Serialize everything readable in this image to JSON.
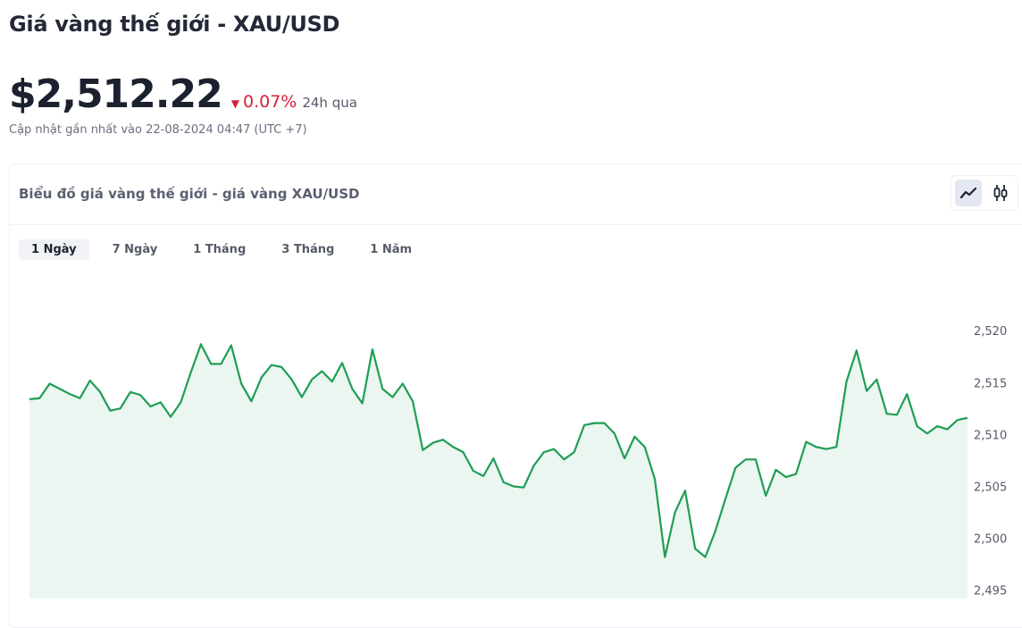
{
  "header": {
    "title": "Giá vàng thế giới - XAU/USD",
    "price": "$2,512.22",
    "change": "0.07%",
    "change_direction": "down",
    "change_color": "#d9203a",
    "period": "24h qua",
    "updated": "Cập nhật gần nhất vào 22-08-2024 04:47 (UTC +7)"
  },
  "card": {
    "title": "Biểu đồ giá vàng thế giới - giá vàng XAU/USD",
    "chart_types": [
      {
        "icon": "line-chart-icon",
        "active": true
      },
      {
        "icon": "candlestick-icon",
        "active": false
      }
    ],
    "tabs": [
      {
        "label": "1 Ngày",
        "active": true
      },
      {
        "label": "7 Ngày",
        "active": false
      },
      {
        "label": "1 Tháng",
        "active": false
      },
      {
        "label": "3 Tháng",
        "active": false
      },
      {
        "label": "1 Năm",
        "active": false
      }
    ]
  },
  "chart_data": {
    "type": "area",
    "title": "",
    "xlabel": "",
    "ylabel": "",
    "ylim": [
      2494.2,
      2522.6
    ],
    "y_ticks": [
      2495,
      2500,
      2505,
      2510,
      2515,
      2520
    ],
    "y_tick_labels": [
      "2,495",
      "2,500",
      "2,505",
      "2,510",
      "2,515",
      "2,520"
    ],
    "y_axis_position": "right",
    "grid": false,
    "line_color": "#1f9d55",
    "fill_color": "#eaf6ef",
    "values": [
      2513.4,
      2513.5,
      2514.9,
      2514.4,
      2513.9,
      2513.5,
      2515.2,
      2514.1,
      2512.3,
      2512.5,
      2514.1,
      2513.8,
      2512.7,
      2513.1,
      2511.7,
      2513.1,
      2516.0,
      2518.7,
      2516.8,
      2516.8,
      2518.6,
      2514.9,
      2513.2,
      2515.5,
      2516.7,
      2516.5,
      2515.3,
      2513.6,
      2515.3,
      2516.1,
      2515.1,
      2516.9,
      2514.4,
      2513.0,
      2518.2,
      2514.4,
      2513.6,
      2514.9,
      2513.2,
      2508.5,
      2509.2,
      2509.5,
      2508.8,
      2508.3,
      2506.5,
      2506.0,
      2507.7,
      2505.4,
      2505.0,
      2504.9,
      2507.0,
      2508.3,
      2508.6,
      2507.6,
      2508.3,
      2510.9,
      2511.1,
      2511.1,
      2510.1,
      2507.7,
      2509.8,
      2508.8,
      2505.7,
      2498.2,
      2502.5,
      2504.6,
      2499.0,
      2498.2,
      2500.7,
      2503.8,
      2506.8,
      2507.6,
      2507.6,
      2504.1,
      2506.6,
      2505.9,
      2506.2,
      2509.3,
      2508.8,
      2508.6,
      2508.8,
      2515.1,
      2518.1,
      2514.2,
      2515.3,
      2512.0,
      2511.9,
      2513.9,
      2510.8,
      2510.1,
      2510.8,
      2510.5,
      2511.4,
      2511.6
    ]
  }
}
